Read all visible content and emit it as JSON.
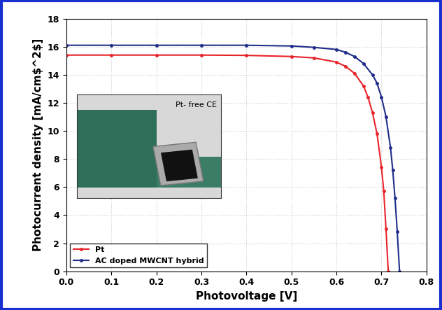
{
  "chart_data": {
    "type": "line",
    "x_label": "Photovoltage [V]",
    "y_label": "Photocurrent density [mA/cm$^2$]",
    "inset_text": "Pt- free CE",
    "series": [
      {
        "name": "Pt",
        "color": "#e8232a",
        "marker": "o",
        "x": [
          0.0,
          0.1,
          0.2,
          0.3,
          0.4,
          0.5,
          0.55,
          0.6,
          0.62,
          0.64,
          0.66,
          0.67,
          0.68,
          0.69,
          0.7,
          0.705,
          0.71,
          0.715
        ],
        "values": [
          15.4,
          15.4,
          15.4,
          15.4,
          15.38,
          15.3,
          15.2,
          14.9,
          14.6,
          14.1,
          13.2,
          12.4,
          11.3,
          9.8,
          7.4,
          5.7,
          3.0,
          0.0
        ]
      },
      {
        "name": "AC doped MWCNT hybrid",
        "color": "#1f2d8a",
        "marker": "o",
        "x": [
          0.0,
          0.1,
          0.2,
          0.3,
          0.4,
          0.5,
          0.55,
          0.6,
          0.62,
          0.64,
          0.66,
          0.68,
          0.69,
          0.7,
          0.71,
          0.72,
          0.725,
          0.73,
          0.735,
          0.74
        ],
        "values": [
          16.1,
          16.1,
          16.1,
          16.1,
          16.1,
          16.05,
          15.95,
          15.8,
          15.6,
          15.3,
          14.8,
          14.0,
          13.4,
          12.4,
          11.0,
          8.8,
          7.2,
          5.2,
          2.8,
          0.0
        ]
      }
    ],
    "xlim": [
      0.0,
      0.8
    ],
    "xticks": [
      0.0,
      0.1,
      0.2,
      0.3,
      0.4,
      0.5,
      0.6,
      0.7,
      0.8
    ],
    "ylim": [
      0,
      18
    ],
    "yticks": [
      0,
      2,
      4,
      6,
      8,
      10,
      12,
      14,
      16,
      18
    ],
    "grid": true,
    "legend": "lower left"
  }
}
